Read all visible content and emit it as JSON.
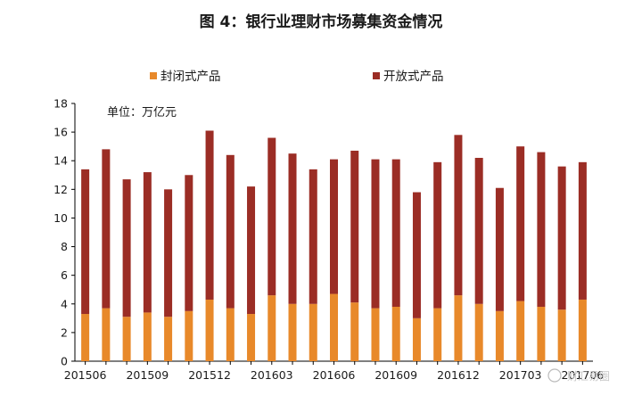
{
  "chart_data": {
    "type": "bar",
    "stacked": true,
    "title": "图 4：银行业理财市场募集资金情况",
    "unit_label": "单位：万亿元",
    "xlabel": "",
    "ylabel": "",
    "ylim": [
      0,
      18
    ],
    "yticks": [
      0,
      2,
      4,
      6,
      8,
      10,
      12,
      14,
      16,
      18
    ],
    "grid": false,
    "legend_position": "top",
    "categories": [
      "201506",
      "201507",
      "201508",
      "201509",
      "201510",
      "201511",
      "201512",
      "201601",
      "201602",
      "201603",
      "201604",
      "201605",
      "201606",
      "201607",
      "201608",
      "201609",
      "201610",
      "201611",
      "201612",
      "201701",
      "201702",
      "201703",
      "201704",
      "201705",
      "201706"
    ],
    "x_tick_labels": [
      "201506",
      "201509",
      "201512",
      "201603",
      "201606",
      "201609",
      "201612",
      "201703",
      "201706"
    ],
    "series": [
      {
        "name": "封闭式产品",
        "color": "#E8892A",
        "values": [
          3.3,
          3.7,
          3.1,
          3.4,
          3.1,
          3.5,
          4.3,
          3.7,
          3.3,
          4.6,
          4.0,
          4.0,
          4.7,
          4.1,
          3.7,
          3.8,
          3.0,
          3.7,
          4.6,
          4.0,
          3.5,
          4.2,
          3.8,
          3.6,
          4.3
        ]
      },
      {
        "name": "开放式产品",
        "color": "#9B2D25",
        "values": [
          10.1,
          11.1,
          9.6,
          9.8,
          8.9,
          9.5,
          11.8,
          10.7,
          8.9,
          11.0,
          10.5,
          9.4,
          9.4,
          10.6,
          10.4,
          10.3,
          8.8,
          10.2,
          11.2,
          10.2,
          8.6,
          10.8,
          10.8,
          10.0,
          9.6
        ]
      }
    ]
  },
  "watermark": "财汇易圈"
}
